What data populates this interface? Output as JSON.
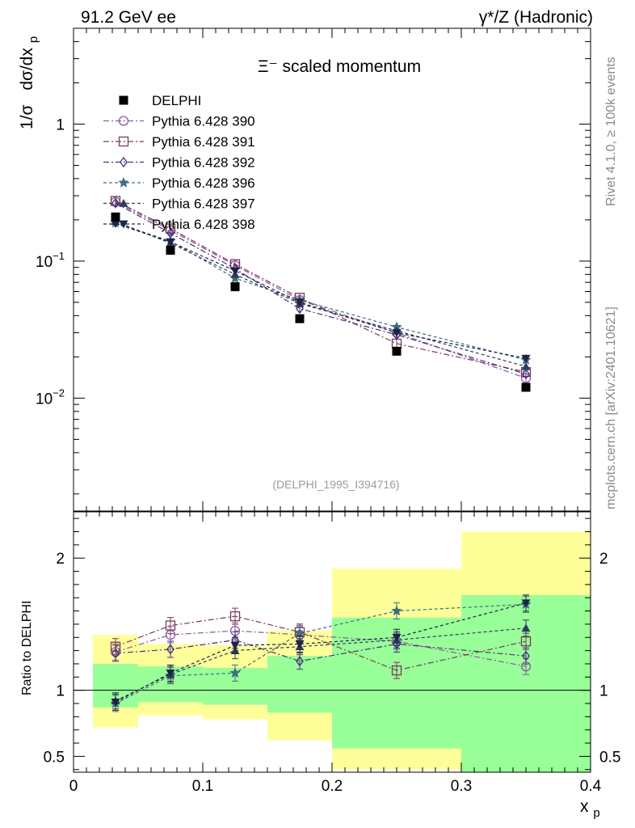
{
  "header": {
    "left": "91.2 GeV ee",
    "right": "γ*/Z (Hadronic)"
  },
  "side_labels": {
    "rivet": "Rivet 4.1.0, ≥ 100k events",
    "mcplots": "mcplots.cern.ch [arXiv:2401.10621]"
  },
  "chart_data": {
    "type": "line",
    "title": "Ξ⁻ scaled momentum",
    "analysis": "(DELPHI_1995_I394716)",
    "ylabel_top": "1/σ  dσ/dx_p",
    "ylabel_top_parts": [
      "1/σ",
      "dσ/dx",
      "p"
    ],
    "ylabel_bottom": "Ratio to DELPHI",
    "xlabel": "x_p",
    "xlabel_parts": [
      "x",
      "p"
    ],
    "xlim": [
      0,
      0.4
    ],
    "ylim_top": [
      0.0015,
      5
    ],
    "ylim_bottom": [
      0.38,
      2.35
    ],
    "xticks": [
      0,
      0.1,
      0.2,
      0.3,
      0.4
    ],
    "xtick_labels": [
      "0",
      "0.1",
      "0.2",
      "0.3",
      "0.4"
    ],
    "yticks_top": [
      {
        "value": 1,
        "base": "1",
        "exp": ""
      },
      {
        "value": 0.1,
        "base": "10",
        "exp": "−1"
      },
      {
        "value": 0.01,
        "base": "10",
        "exp": "−2"
      }
    ],
    "yticks_bottom": [
      {
        "value": 0.5,
        "label": "0.5"
      },
      {
        "value": 1,
        "label": "1"
      },
      {
        "value": 2,
        "label": "2"
      }
    ],
    "x": [
      0.0325,
      0.075,
      0.125,
      0.175,
      0.25,
      0.35
    ],
    "bin_edges": [
      0.015,
      0.05,
      0.1,
      0.15,
      0.2,
      0.3,
      0.4
    ],
    "data": {
      "name": "DELPHI",
      "values": [
        0.21,
        0.12,
        0.065,
        0.038,
        0.022,
        0.012
      ]
    },
    "band_yellow": {
      "low": [
        0.72,
        0.81,
        0.78,
        0.62,
        0.4,
        0.3
      ],
      "high": [
        1.42,
        1.35,
        1.34,
        1.45,
        1.92,
        2.2
      ]
    },
    "band_green": {
      "low": [
        0.87,
        0.91,
        0.89,
        0.83,
        0.56,
        0.35
      ],
      "high": [
        1.2,
        1.18,
        1.17,
        1.26,
        1.55,
        1.72
      ]
    },
    "series": [
      {
        "name": "Pythia 6.428 390",
        "color": "#8b5a9e",
        "marker": "circle-open",
        "dash": "7,3,2,3",
        "values": [
          0.27,
          0.168,
          0.093,
          0.052,
          0.03,
          0.014
        ],
        "ratio": [
          1.29,
          1.42,
          1.45,
          1.42,
          1.37,
          1.18
        ]
      },
      {
        "name": "Pythia 6.428 391",
        "color": "#7a3b5a",
        "marker": "square-open",
        "dash": "7,3,2,3",
        "values": [
          0.275,
          0.173,
          0.095,
          0.054,
          0.025,
          0.0155
        ],
        "ratio": [
          1.33,
          1.49,
          1.56,
          1.44,
          1.15,
          1.37
        ]
      },
      {
        "name": "Pythia 6.428 392",
        "color": "#4a2f7a",
        "marker": "diamond-open",
        "dash": "7,3,2,3",
        "values": [
          0.265,
          0.16,
          0.088,
          0.045,
          0.029,
          0.015
        ],
        "ratio": [
          1.28,
          1.31,
          1.38,
          1.22,
          1.35,
          1.26
        ]
      },
      {
        "name": "Pythia 6.428 396",
        "color": "#3f6e80",
        "marker": "star",
        "dash": "4,3",
        "values": [
          0.19,
          0.14,
          0.075,
          0.052,
          0.033,
          0.019
        ],
        "ratio": [
          0.9,
          1.11,
          1.13,
          1.43,
          1.6,
          1.65
        ]
      },
      {
        "name": "Pythia 6.428 397",
        "color": "#2f3d5c",
        "marker": "triangle-up",
        "dash": "4,3",
        "values": [
          0.195,
          0.135,
          0.08,
          0.049,
          0.031,
          0.017
        ],
        "ratio": [
          0.92,
          1.12,
          1.3,
          1.33,
          1.38,
          1.47
        ]
      },
      {
        "name": "Pythia 6.428 398",
        "color": "#1c2444",
        "marker": "triangle-down",
        "dash": "4,3",
        "values": [
          0.188,
          0.138,
          0.085,
          0.05,
          0.03,
          0.0195
        ],
        "ratio": [
          0.91,
          1.13,
          1.34,
          1.35,
          1.4,
          1.66
        ]
      }
    ]
  }
}
